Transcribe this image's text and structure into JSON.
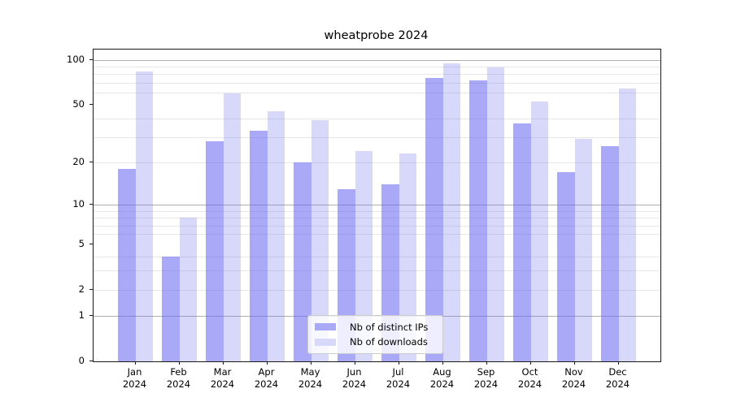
{
  "title": "wheatprobe 2024",
  "chart_data": {
    "type": "bar",
    "title": "wheatprobe 2024",
    "categories": [
      "Jan 2024",
      "Feb 2024",
      "Mar 2024",
      "Apr 2024",
      "May 2024",
      "Jun 2024",
      "Jul 2024",
      "Aug 2024",
      "Sep 2024",
      "Oct 2024",
      "Nov 2024",
      "Dec 2024"
    ],
    "series": [
      {
        "name": "Nb of distinct IPs",
        "color": "#a9a9f7",
        "fill": "rgba(98,98,240,0.55)",
        "values": [
          18,
          4,
          28,
          33,
          20,
          13,
          14,
          75,
          73,
          37,
          17,
          26
        ]
      },
      {
        "name": "Nb of downloads",
        "color": "#d8d8fb",
        "fill": "rgba(98,98,240,0.25)",
        "values": [
          83,
          8,
          59,
          45,
          39,
          24,
          23,
          95,
          89,
          52,
          29,
          64
        ]
      }
    ],
    "xlabel": "",
    "ylabel": "",
    "yscale": "log1p",
    "ylim": [
      0,
      117
    ],
    "y_ticks": [
      0,
      1,
      2,
      5,
      10,
      20,
      50,
      100
    ],
    "y_major_grid": [
      1,
      10,
      100
    ],
    "y_minor_grid": [
      2,
      3,
      4,
      6,
      7,
      8,
      9,
      20,
      30,
      40,
      60,
      70,
      80,
      90
    ],
    "grid": true,
    "legend_position": "lower center",
    "colors": {
      "major_grid": "#b0b0b0",
      "minor_grid": "#e7e7e7",
      "axis_frame": "#1a1a1a",
      "background": "#ffffff"
    }
  }
}
